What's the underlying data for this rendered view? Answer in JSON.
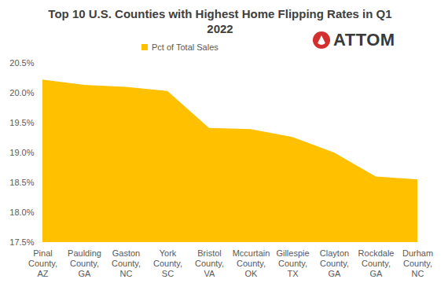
{
  "chart_data": {
    "type": "area",
    "title": "Top 10 U.S. Counties with Highest Home Flipping Rates in Q1 2022",
    "categories": [
      "Pinal County, AZ",
      "Paulding County, GA",
      "Gaston County, NC",
      "York County, SC",
      "Bristol County, VA",
      "Mccurtain County, OK",
      "Gillespie County, TX",
      "Clayton County, GA",
      "Rockdale County, GA",
      "Durham County, NC"
    ],
    "series": [
      {
        "name": "Pct of Total Sales",
        "color": "#ffc000",
        "values": [
          20.22,
          20.13,
          20.1,
          20.03,
          19.41,
          19.39,
          19.26,
          19.0,
          18.6,
          18.55
        ]
      }
    ],
    "ylim": [
      17.5,
      20.5
    ],
    "yticks": [
      {
        "value": 17.5,
        "label": "17.5%"
      },
      {
        "value": 18.0,
        "label": "18.0%"
      },
      {
        "value": 18.5,
        "label": "18.5%"
      },
      {
        "value": 19.0,
        "label": "19.0%"
      },
      {
        "value": 19.5,
        "label": "19.5%"
      },
      {
        "value": 20.0,
        "label": "20.0%"
      },
      {
        "value": 20.5,
        "label": "20.5%"
      }
    ],
    "grid": false,
    "legend": "top",
    "annotations": [
      "ATTOM"
    ]
  }
}
